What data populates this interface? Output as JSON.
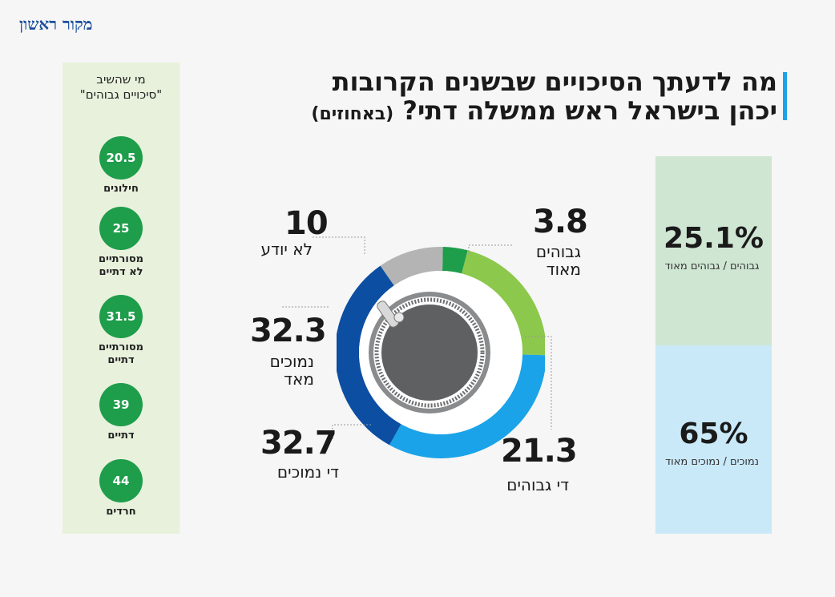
{
  "brand": {
    "logo": "מקור ראשון"
  },
  "title": {
    "line1": "מה לדעתך הסיכויים שבשנים הקרובות",
    "line2": "יכהן בישראל ראש ממשלה דתי?",
    "note": "(באחוזים)"
  },
  "left_panel": {
    "heading_line1": "מי שהשיב",
    "heading_line2": "\"סיכויים גבוהים\"",
    "groups": [
      {
        "value": "20.5",
        "label_line1": "חילונים",
        "label_line2": ""
      },
      {
        "value": "25",
        "label_line1": "מסורתיים",
        "label_line2": "לא דתיים"
      },
      {
        "value": "31.5",
        "label_line1": "מסורתיים",
        "label_line2": "דתיים"
      },
      {
        "value": "39",
        "label_line1": "דתיים",
        "label_line2": ""
      },
      {
        "value": "44",
        "label_line1": "חרדים",
        "label_line2": ""
      }
    ]
  },
  "right_panel": {
    "high": {
      "value": "25.1%",
      "label": "גבוהים / גבוהים מאוד"
    },
    "low": {
      "value": "65%",
      "label": "נמוכים / נמוכים מאוד"
    }
  },
  "colors": {
    "very_high": "#1e9d4b",
    "high": "#8cc84b",
    "low": "#1aa3e8",
    "very_low": "#0b4ea2",
    "dont_know": "#b4b4b4",
    "dial": "#5f6062"
  },
  "chart_data": {
    "type": "pie",
    "variant": "donut",
    "title": "מה לדעתך הסיכויים שבשנים הקרובות יכהן בישראל ראש ממשלה דתי? (באחוזים)",
    "slices": [
      {
        "value": 3.8,
        "value_label": "3.8",
        "label_line1": "גבוהים",
        "label_line2": "מאוד",
        "color": "#1e9d4b"
      },
      {
        "value": 21.3,
        "value_label": "21.3",
        "label_line1": "די גבוהים",
        "label_line2": "",
        "color": "#8cc84b"
      },
      {
        "value": 32.7,
        "value_label": "32.7",
        "label_line1": "די נמוכים",
        "label_line2": "",
        "color": "#1aa3e8"
      },
      {
        "value": 32.3,
        "value_label": "32.3",
        "label_line1": "נמוכים",
        "label_line2": "מאד",
        "color": "#0b4ea2"
      },
      {
        "value": 10,
        "value_label": "10",
        "label_line1": "לא יודע",
        "label_line2": "",
        "color": "#b4b4b4"
      }
    ]
  }
}
